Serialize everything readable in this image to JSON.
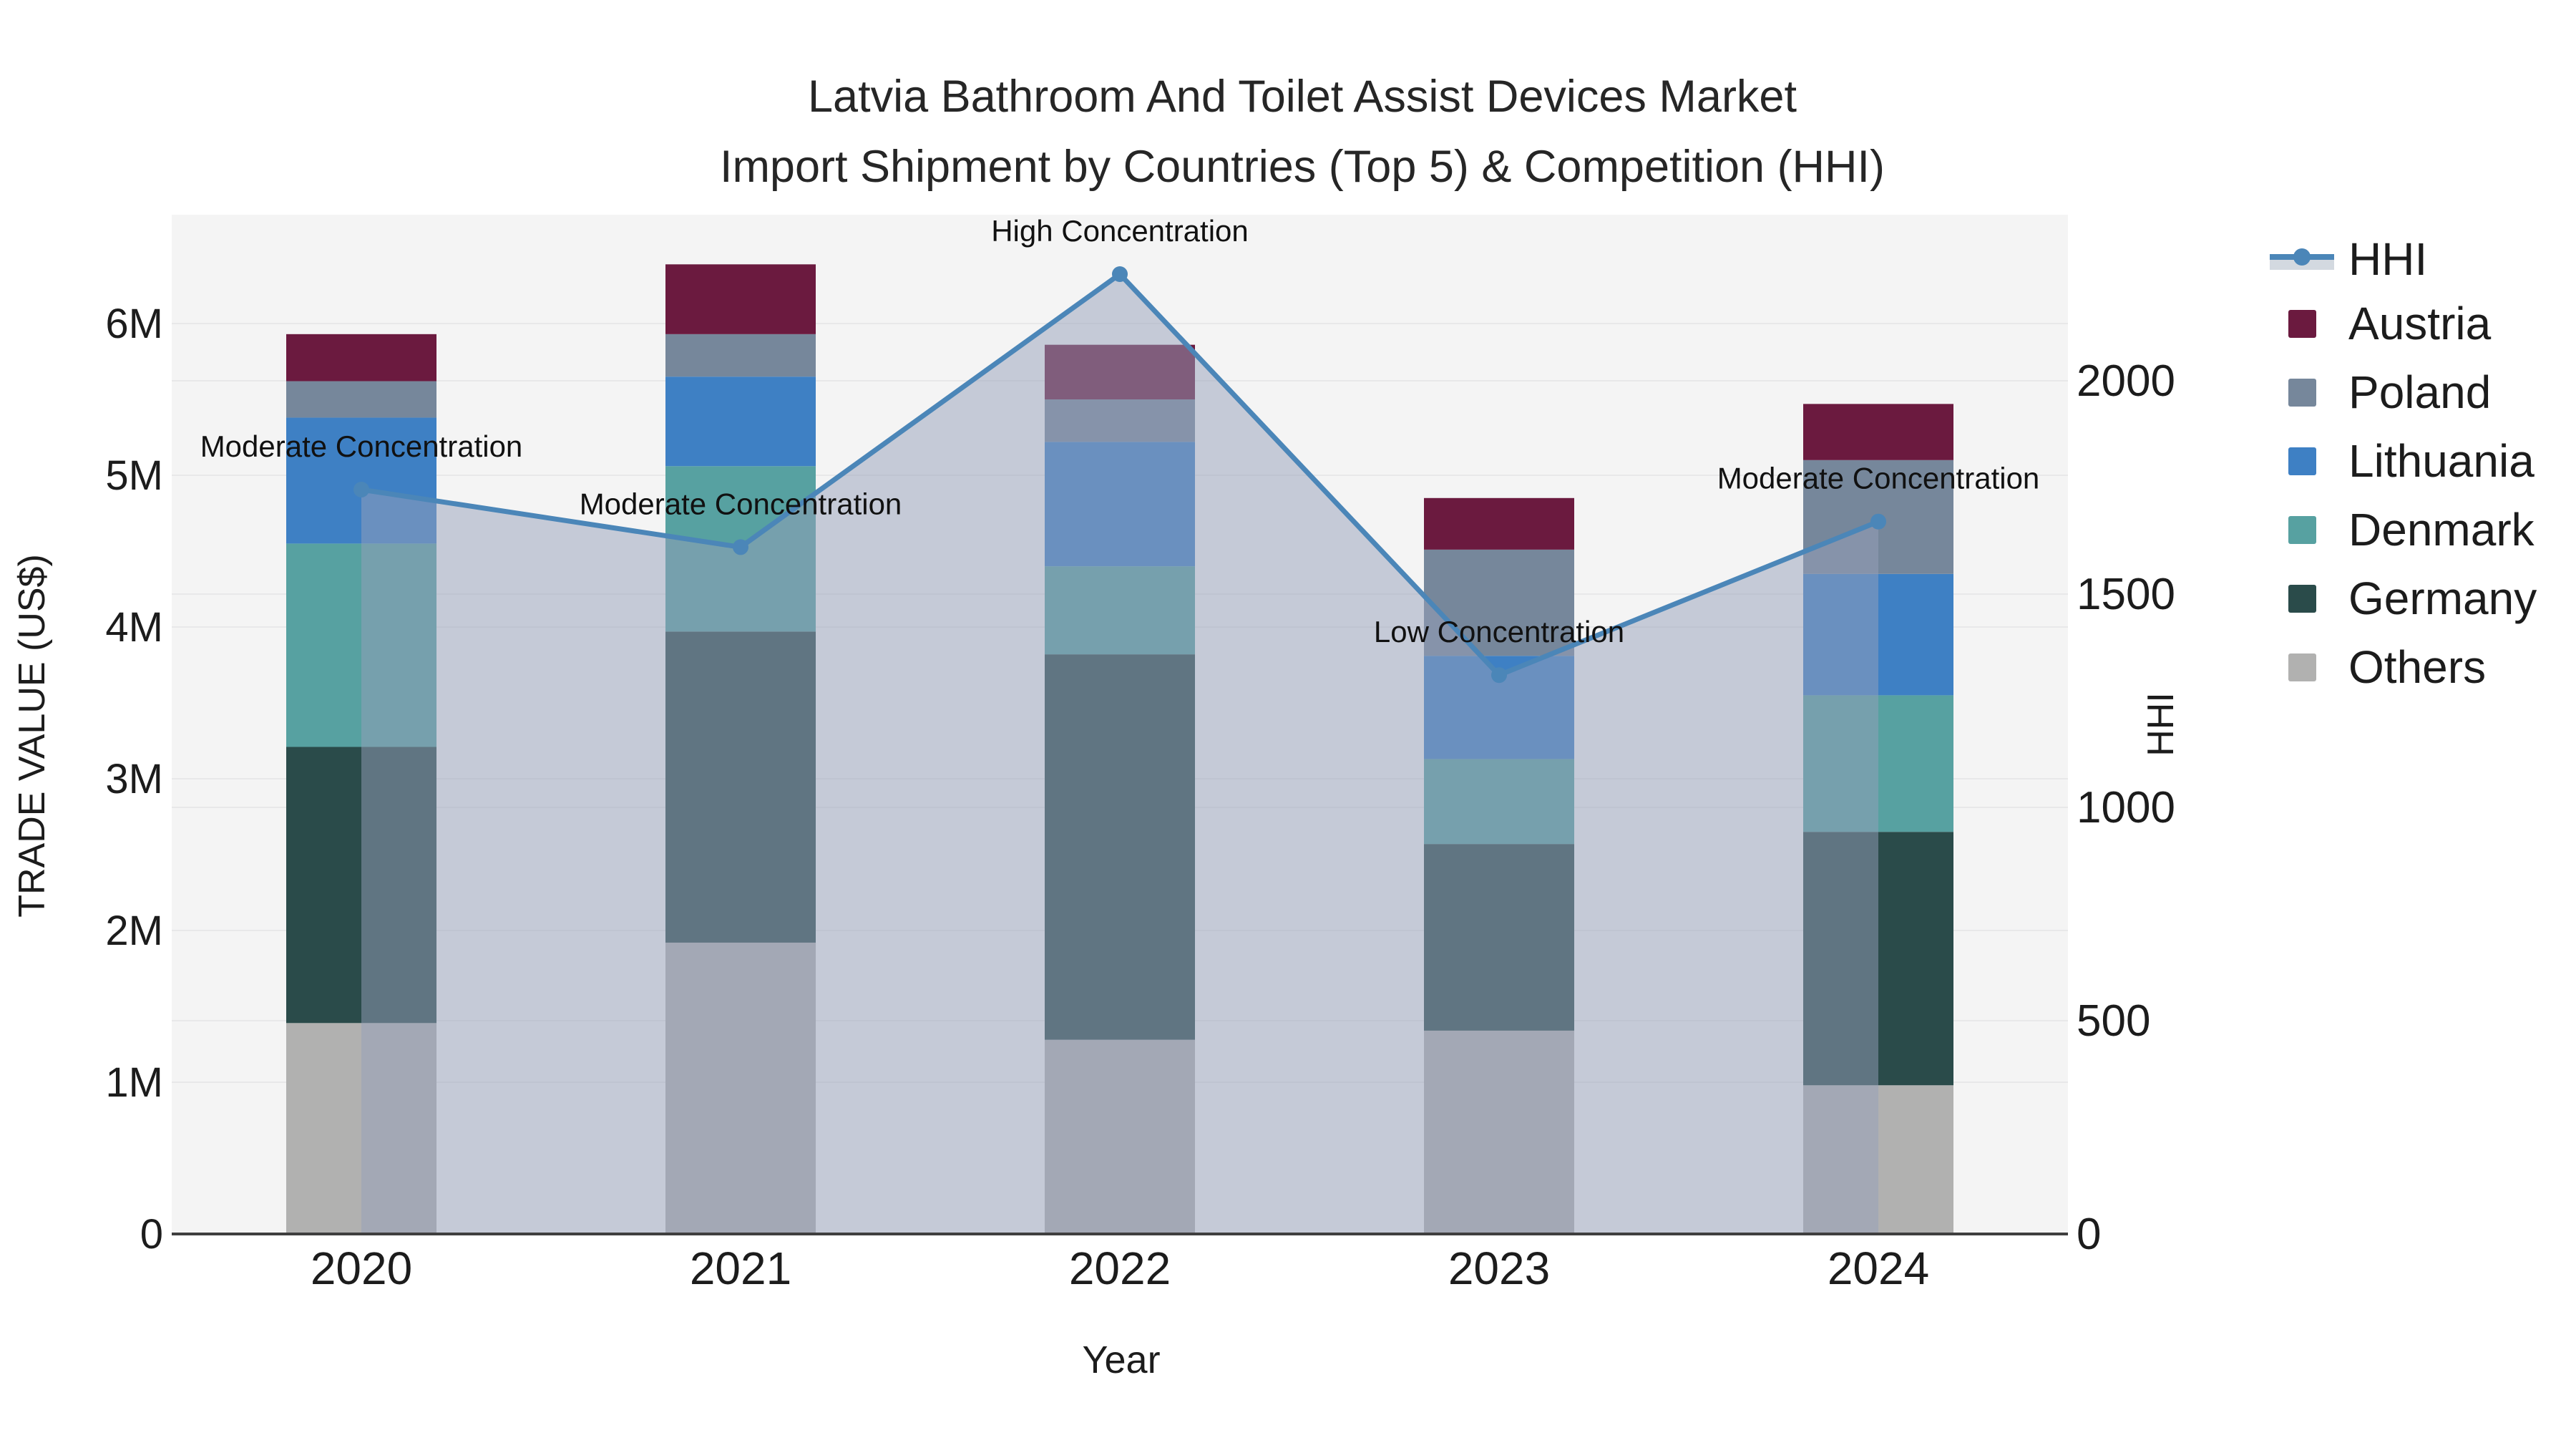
{
  "title": {
    "line1": "Latvia Bathroom And Toilet Assist Devices Market",
    "line2": "Import Shipment by Countries (Top 5) & Competition (HHI)"
  },
  "axes": {
    "x": {
      "title": "Year",
      "tick_labels": [
        "2020",
        "2021",
        "2022",
        "2023",
        "2024"
      ]
    },
    "y_left": {
      "title": "TRADE VALUE (US$)",
      "tick_labels": [
        "0",
        "1M",
        "2M",
        "3M",
        "4M",
        "5M",
        "6M"
      ],
      "tick_values": [
        0,
        1,
        2,
        3,
        4,
        5,
        6
      ],
      "range": [
        0,
        6.72
      ]
    },
    "y_right": {
      "title": "HHI",
      "tick_labels": [
        "0",
        "500",
        "1000",
        "1500",
        "2000"
      ],
      "tick_values": [
        0,
        500,
        1000,
        1500,
        2000
      ],
      "range": [
        0,
        2390
      ]
    }
  },
  "legend": {
    "items": [
      "HHI",
      "Austria",
      "Poland",
      "Lithuania",
      "Denmark",
      "Germany",
      "Others"
    ]
  },
  "colors": {
    "austria": "#6B1A3F",
    "poland": "#76879B",
    "lithuania": "#3E80C4",
    "denmark": "#57A1A1",
    "germany": "#2A4B4A",
    "others": "#B1B1B0",
    "hhi_line": "#4B86B8",
    "hhi_area": "rgba(150,160,185,0.5)",
    "plot_bg": "#F4F4F4",
    "grid": "#E8E8E9",
    "axis_line": "#3F3F3F",
    "text": "#1C1C1C"
  },
  "chart_data": {
    "type": "bar",
    "subtype": "stacked bars (left axis, trade value in millions US$) + HHI line with area fill (right axis)",
    "categories": [
      "2020",
      "2021",
      "2022",
      "2023",
      "2024"
    ],
    "unit": "millions US$",
    "series": [
      {
        "name": "Austria",
        "color": "#6B1A3F",
        "values": [
          0.31,
          0.46,
          0.36,
          0.34,
          0.37
        ]
      },
      {
        "name": "Poland",
        "color": "#76879B",
        "values": [
          0.24,
          0.28,
          0.28,
          0.7,
          0.75
        ]
      },
      {
        "name": "Lithuania",
        "color": "#3E80C4",
        "values": [
          0.83,
          0.59,
          0.82,
          0.68,
          0.8
        ]
      },
      {
        "name": "Denmark",
        "color": "#57A1A1",
        "values": [
          1.34,
          1.09,
          0.58,
          0.56,
          0.9
        ]
      },
      {
        "name": "Germany",
        "color": "#2A4B4A",
        "values": [
          1.82,
          2.05,
          2.54,
          1.23,
          1.67
        ]
      },
      {
        "name": "Others",
        "color": "#B1B1B0",
        "values": [
          1.39,
          1.92,
          1.28,
          1.34,
          0.98
        ]
      }
    ],
    "stack_order_bottom_to_top": [
      "Others",
      "Germany",
      "Denmark",
      "Lithuania",
      "Poland",
      "Austria"
    ],
    "bar_totals": [
      5.93,
      6.39,
      5.86,
      4.85,
      5.47
    ],
    "hhi": {
      "name": "HHI",
      "values": [
        1745,
        1610,
        2250,
        1310,
        1670
      ],
      "annotations": [
        {
          "year": "2020",
          "text": "Moderate Concentration"
        },
        {
          "year": "2021",
          "text": "Moderate Concentration"
        },
        {
          "year": "2022",
          "text": "High Concentration"
        },
        {
          "year": "2023",
          "text": "Low Concentration"
        },
        {
          "year": "2024",
          "text": "Moderate Concentration"
        }
      ]
    },
    "title": "Latvia Bathroom And Toilet Assist Devices Market Import Shipment by Countries (Top 5) & Competition (HHI)",
    "xlabel": "Year",
    "ylabel": "TRADE VALUE (US$)",
    "ylabel_right": "HHI",
    "grid": true,
    "legend_position": "right"
  }
}
